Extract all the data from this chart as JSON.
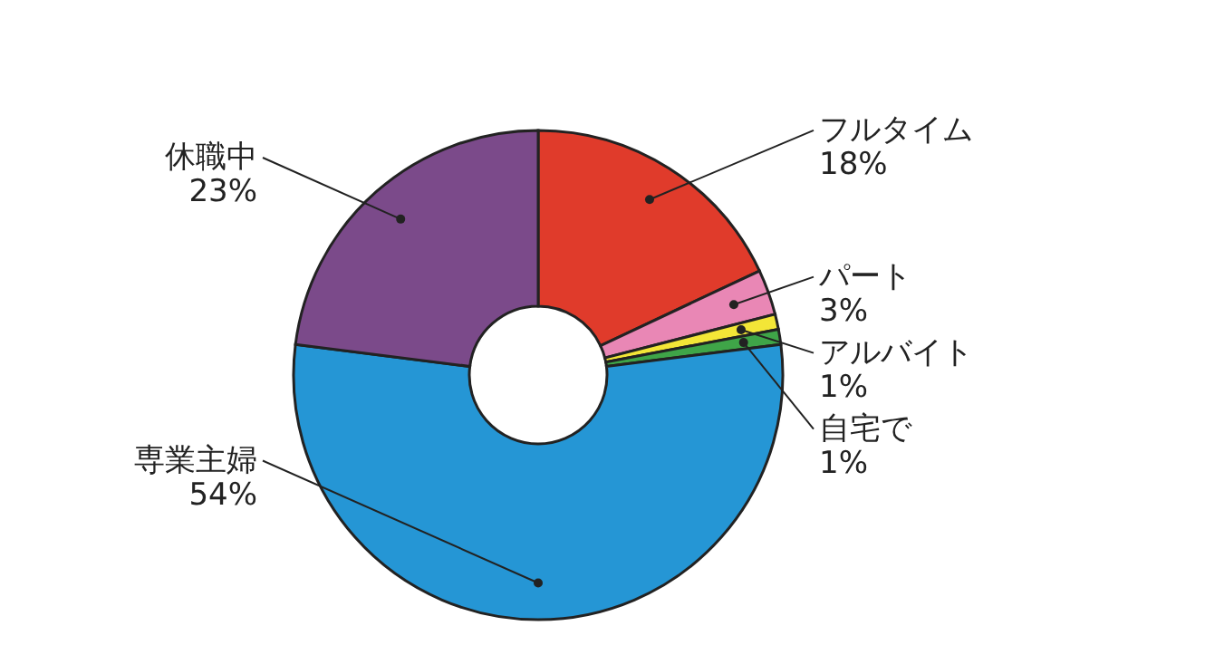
{
  "chart_data": {
    "type": "donut",
    "categories": [
      "フルタイム",
      "パート",
      "アルバイト",
      "自宅で",
      "専業主婦",
      "休職中"
    ],
    "values": [
      18,
      3,
      1,
      1,
      54,
      23
    ],
    "colors": [
      "#e03b2b",
      "#e987b5",
      "#f3e637",
      "#3fa548",
      "#2596d5",
      "#7b4a8a"
    ],
    "value_labels": [
      "18%",
      "3%",
      "1%",
      "1%",
      "54%",
      "23%"
    ]
  }
}
